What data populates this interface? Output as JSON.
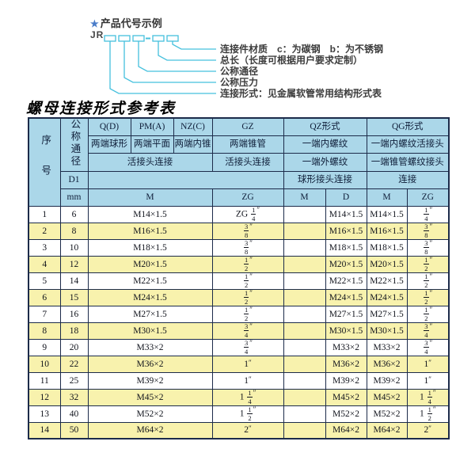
{
  "diagram": {
    "star": "★",
    "title": "产品代号示例",
    "code_prefix": "JR",
    "dash": "-",
    "labels": [
      "连接件材质　c：为碳钢　b：为不锈钢",
      "总长（长度可根据用户要求定制）",
      "公称通径",
      "公称压力",
      "连接形式：见金属软管常用结构形式表"
    ]
  },
  "table": {
    "title": "螺母连接形式参考表",
    "header": {
      "seq": "序号",
      "nominal_diameter": "公称通径",
      "d1": "D1",
      "mm": "mm",
      "col_q": "Q(D)",
      "col_q_desc": "两端球形",
      "col_pm": "PM(A)",
      "col_pm_desc": "两端平面",
      "col_nz": "NZ(C)",
      "col_nz_desc": "两端内锥",
      "col_gz": "GZ",
      "col_gz_desc": "两端锥管",
      "union_connection": "活接头连接",
      "gz_union": "活接头连接",
      "col_qz": "QZ形式",
      "qz_desc1": "一端内螺纹",
      "qz_desc2": "一端外螺纹",
      "qz_desc3": "球形接头连接",
      "col_qg": "QG形式",
      "qg_desc1": "一端内螺纹活接头",
      "qg_desc2": "一端锥管螺纹接头",
      "qg_desc3": "连接",
      "m_label": "M",
      "zg_label": "ZG",
      "d_label": "D"
    },
    "rows": [
      {
        "no": "1",
        "mm": "6",
        "m": "M14×1.5",
        "zg": "ZG 1/4\"",
        "qz_m": "",
        "qz_d": "M14×1.5",
        "qg_m": "M14×1.5",
        "qg_zg": "1/4\""
      },
      {
        "no": "2",
        "mm": "8",
        "m": "M16×1.5",
        "zg": "3/8\"",
        "qz_m": "",
        "qz_d": "M16×1.5",
        "qg_m": "M16×1.5",
        "qg_zg": "3/8\""
      },
      {
        "no": "3",
        "mm": "10",
        "m": "M18×1.5",
        "zg": "3/8\"",
        "qz_m": "",
        "qz_d": "M18×1.5",
        "qg_m": "M18×1.5",
        "qg_zg": "3/8\""
      },
      {
        "no": "4",
        "mm": "12",
        "m": "M20×1.5",
        "zg": "1/2\"",
        "qz_m": "",
        "qz_d": "M20×1.5",
        "qg_m": "M20×1.5",
        "qg_zg": "1/2\""
      },
      {
        "no": "5",
        "mm": "14",
        "m": "M22×1.5",
        "zg": "1/2\"",
        "qz_m": "",
        "qz_d": "M22×1.5",
        "qg_m": "M22×1.5",
        "qg_zg": "1/2\""
      },
      {
        "no": "6",
        "mm": "15",
        "m": "M24×1.5",
        "zg": "1/2\"",
        "qz_m": "",
        "qz_d": "M24×1.5",
        "qg_m": "M24×1.5",
        "qg_zg": "1/2\""
      },
      {
        "no": "7",
        "mm": "16",
        "m": "M27×1.5",
        "zg": "1/2\"",
        "qz_m": "",
        "qz_d": "M27×1.5",
        "qg_m": "M27×1.5",
        "qg_zg": "1/2\""
      },
      {
        "no": "8",
        "mm": "18",
        "m": "M30×1.5",
        "zg": "3/4\"",
        "qz_m": "",
        "qz_d": "M30×1.5",
        "qg_m": "M30×1.5",
        "qg_zg": "3/4\""
      },
      {
        "no": "9",
        "mm": "20",
        "m": "M33×2",
        "zg": "3/4\"",
        "qz_m": "",
        "qz_d": "M33×2",
        "qg_m": "M33×2",
        "qg_zg": "3/4\""
      },
      {
        "no": "10",
        "mm": "22",
        "m": "M36×2",
        "zg": "1\"",
        "qz_m": "",
        "qz_d": "M36×2",
        "qg_m": "M36×2",
        "qg_zg": "1\""
      },
      {
        "no": "11",
        "mm": "25",
        "m": "M39×2",
        "zg": "1\"",
        "qz_m": "",
        "qz_d": "M39×2",
        "qg_m": "M39×2",
        "qg_zg": "1\""
      },
      {
        "no": "12",
        "mm": "32",
        "m": "M45×2",
        "zg": "1 1/4\"",
        "qz_m": "",
        "qz_d": "M45×2",
        "qg_m": "M45×2",
        "qg_zg": "1 1/4\""
      },
      {
        "no": "13",
        "mm": "40",
        "m": "M52×2",
        "zg": "1 1/2\"",
        "qz_m": "",
        "qz_d": "M52×2",
        "qg_m": "M52×2",
        "qg_zg": "1 1/2\""
      },
      {
        "no": "14",
        "mm": "50",
        "m": "M64×2",
        "zg": "2\"",
        "qz_m": "",
        "qz_d": "M64×2",
        "qg_m": "M64×2",
        "qg_zg": "2\""
      }
    ]
  },
  "colors": {
    "header_blue": "#abd7e9",
    "row_yellow": "#f8f2ad",
    "border_navy": "#1c2b4a",
    "diagram_cyan": "#45c0dd",
    "star_blue": "#4a7cc9"
  }
}
